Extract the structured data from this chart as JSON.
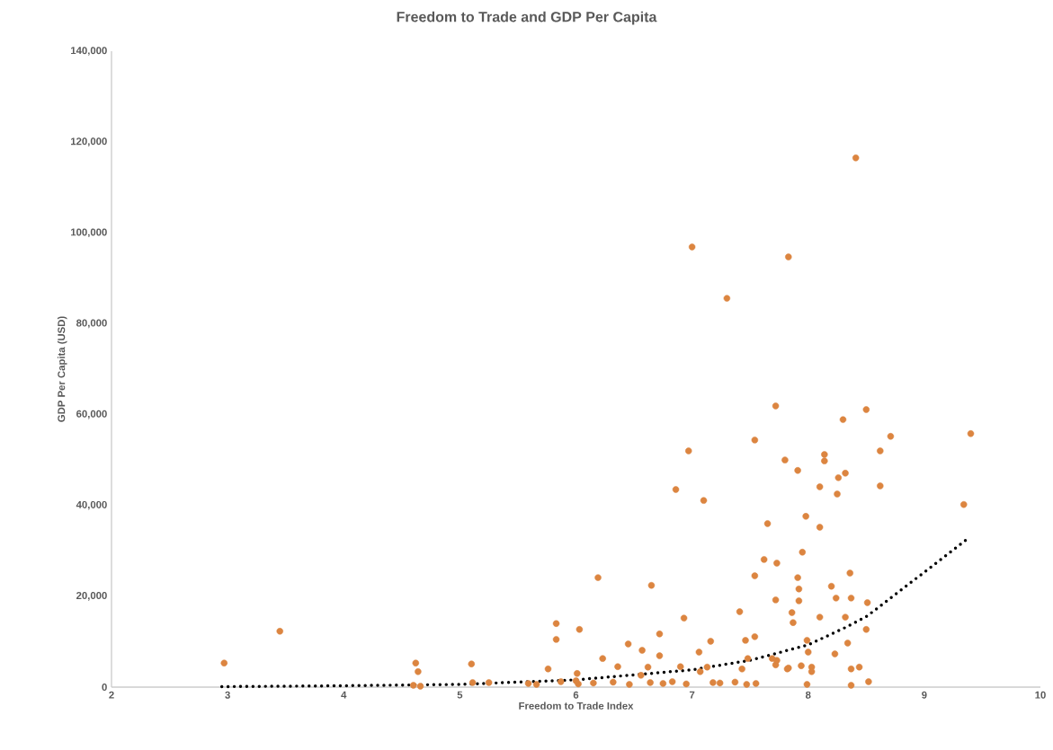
{
  "chart_data": {
    "type": "scatter",
    "title": "Freedom to Trade and GDP Per Capita",
    "xlabel": "Freedom to Trade Index",
    "ylabel": "GDP Per Capita (USD)",
    "xlim": [
      2,
      10
    ],
    "ylim": [
      0,
      140000
    ],
    "xticks": [
      2,
      3,
      4,
      5,
      6,
      7,
      8,
      9,
      10
    ],
    "yticks": [
      0,
      {
        "value": 20000,
        "label": "20,000"
      },
      {
        "value": 40000,
        "label": "40,000"
      },
      {
        "value": 60000,
        "label": "60,000"
      },
      {
        "value": 80000,
        "label": "80,000"
      },
      {
        "value": 100000,
        "label": "100,000"
      },
      {
        "value": 120000,
        "label": "120,000"
      },
      {
        "value": 140000,
        "label": "140,000"
      }
    ],
    "marker": "circle",
    "series": [
      {
        "color": "#dc8540",
        "x": [
          2.97,
          3.45,
          4.62,
          4.64,
          4.6,
          4.66,
          5.1,
          5.11,
          5.25,
          5.83,
          5.83,
          6.03,
          6.19,
          6.65,
          6.93,
          6.72,
          6.45,
          6.57,
          6.23,
          7.16,
          7.06,
          7.41,
          7.46,
          7.54,
          7.72,
          7.54,
          7.62,
          7.73,
          7.65,
          6.72,
          5.76,
          6.01,
          6.36,
          6.62,
          7.07,
          7.13,
          7.48,
          7.69,
          7.72,
          7.82,
          7.43,
          5.59,
          5.66,
          5.87,
          6.02,
          6.15,
          6.32,
          6.46,
          6.64,
          6.75,
          6.83,
          6.95,
          7.18,
          7.24,
          7.37,
          7.47,
          7.55,
          6.0,
          6.56,
          6.9,
          7.72,
          8.3,
          8.5,
          8.71,
          9.4,
          7.8,
          7.91,
          8.14,
          8.14,
          8.62,
          8.26,
          8.32,
          8.1,
          8.25,
          8.62,
          9.34,
          7.98,
          8.1,
          7.95,
          8.36,
          7.91,
          7.92,
          8.2,
          7.92,
          8.24,
          8.37,
          7.86,
          7.87,
          8.1,
          8.32,
          8.51,
          7.99,
          8.34,
          8.5,
          8.0,
          8.23,
          7.73,
          7.83,
          7.94,
          8.03,
          8.03,
          8.37,
          8.44,
          7.99,
          8.37,
          8.52,
          8.41,
          7.0,
          7.83,
          7.3,
          6.97,
          6.86,
          7.1,
          7.54
        ],
        "values": [
          5300,
          12300,
          5300,
          3400,
          400,
          200,
          5100,
          1000,
          1000,
          14000,
          10500,
          12700,
          24100,
          22400,
          15200,
          11700,
          9500,
          8100,
          6300,
          10100,
          7700,
          16600,
          10300,
          11100,
          19200,
          24500,
          28100,
          27300,
          36000,
          6900,
          4000,
          3000,
          4500,
          4400,
          3400,
          4400,
          6300,
          6300,
          4900,
          4000,
          4000,
          800,
          600,
          1200,
          700,
          900,
          1100,
          600,
          1000,
          800,
          1200,
          700,
          1000,
          900,
          1100,
          600,
          800,
          1400,
          2600,
          4500,
          61900,
          58900,
          61100,
          55200,
          55800,
          50000,
          47700,
          51200,
          49800,
          52000,
          46100,
          47100,
          44100,
          42500,
          44300,
          40200,
          37600,
          35200,
          29700,
          25100,
          24100,
          21600,
          22200,
          19000,
          19600,
          19600,
          16400,
          14200,
          15400,
          15400,
          18600,
          10300,
          9700,
          12700,
          7700,
          7300,
          5900,
          4200,
          4700,
          4400,
          3400,
          4000,
          4400,
          600,
          400,
          1200,
          116500,
          96900,
          94700,
          85600,
          52000,
          43500,
          41100,
          54400
        ]
      },
      {
        "type": "line",
        "color": "#000000",
        "line_style": "dotted",
        "marker": "none",
        "x": [
          2.95,
          4,
          5,
          6,
          7,
          7.5,
          8,
          8.31,
          8.5,
          9.0,
          9.37
        ],
        "values": [
          100,
          300,
          600,
          1600,
          3800,
          5900,
          9300,
          13000,
          15500,
          25300,
          32600
        ]
      }
    ]
  }
}
